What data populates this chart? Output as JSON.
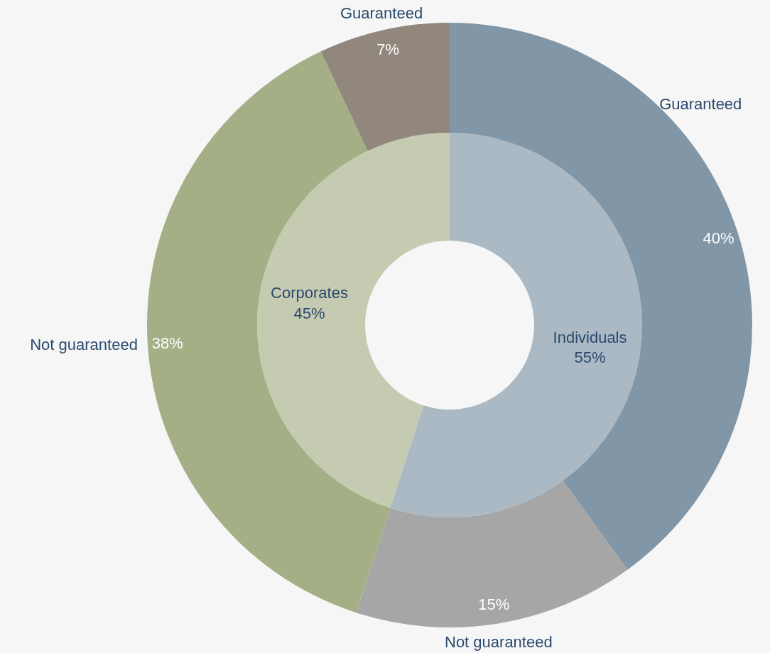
{
  "chart_data": [
    {
      "type": "donut",
      "categories": [
        "Individuals",
        "Corporates"
      ],
      "values": [
        55,
        45
      ],
      "colors": [
        "#aab9c4",
        "#c5cbb1"
      ],
      "value_labels": [
        "55%",
        "45%"
      ]
    },
    {
      "type": "donut",
      "categories": [
        "Guaranteed",
        "Not guaranteed",
        "Not guaranteed",
        "Guaranteed"
      ],
      "values": [
        40,
        15,
        38,
        7
      ],
      "colors": [
        "#8197a7",
        "#a6a6a6",
        "#a4af85",
        "#92877c"
      ],
      "value_labels": [
        "40%",
        "15%",
        "38%",
        "7%"
      ]
    }
  ]
}
